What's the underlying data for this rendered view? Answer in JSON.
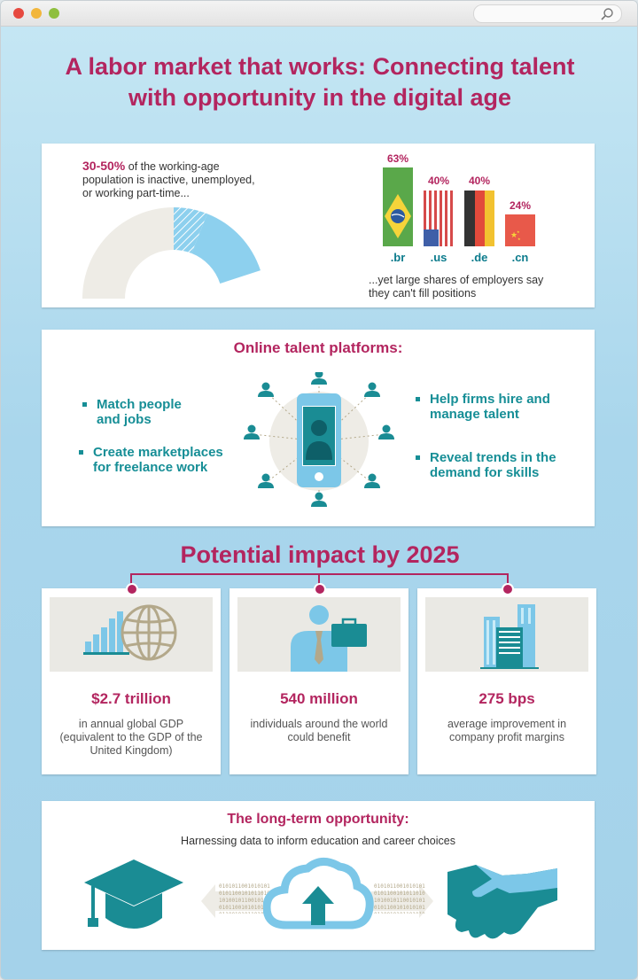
{
  "window": {
    "dot_colors": [
      "#e6493f",
      "#f2b63c",
      "#8fbf3e"
    ]
  },
  "title": {
    "line1": "A labor market that works: Connecting talent",
    "line2": "with opportunity in the digital age"
  },
  "section1": {
    "stat": "30-50%",
    "stat_text_1": " of the working-age",
    "stat_text_2": "population is inactive, unemployed,",
    "stat_text_3": "or working part-time...",
    "donut_share": 0.4,
    "bars": [
      {
        "pct": "63%",
        "value": 63,
        "tld": ".br",
        "flag": "brazil-flag"
      },
      {
        "pct": "40%",
        "value": 40,
        "tld": ".us",
        "flag": "us-flag"
      },
      {
        "pct": "40%",
        "value": 40,
        "tld": ".de",
        "flag": "germany-flag"
      },
      {
        "pct": "24%",
        "value": 24,
        "tld": ".cn",
        "flag": "china-flag"
      }
    ],
    "caption_1": "...yet large shares of employers say",
    "caption_2": "they can't fill positions"
  },
  "section2": {
    "title": "Online talent platforms:",
    "bullets_left": [
      "Match people",
      "and jobs",
      "Create marketplaces",
      "for freelance work"
    ],
    "bullets_right": [
      "Help firms hire and",
      "manage talent",
      "Reveal trends in the",
      "demand for skills"
    ]
  },
  "section3": {
    "title": "Potential impact by 2025",
    "cards": [
      {
        "big": "$2.7 trillion",
        "desc": [
          "in annual global GDP",
          "(equivalent to the GDP of the",
          "United Kingdom)"
        ],
        "icon": "growth-globe-icon"
      },
      {
        "big": "540 million",
        "desc": [
          "individuals around the world",
          "could benefit"
        ],
        "icon": "worker-briefcase-icon"
      },
      {
        "big": "275 bps",
        "desc": [
          "average improvement in",
          "company profit margins"
        ],
        "icon": "office-buildings-icon"
      }
    ]
  },
  "section4": {
    "title": "The long-term opportunity:",
    "subtitle": "Harnessing data to inform education and career choices",
    "binary": "0101011001010101010110010101101010100101100101"
  },
  "colors": {
    "magenta": "#b3255f",
    "teal": "#168e96",
    "light_blue": "#7cc7e8"
  }
}
